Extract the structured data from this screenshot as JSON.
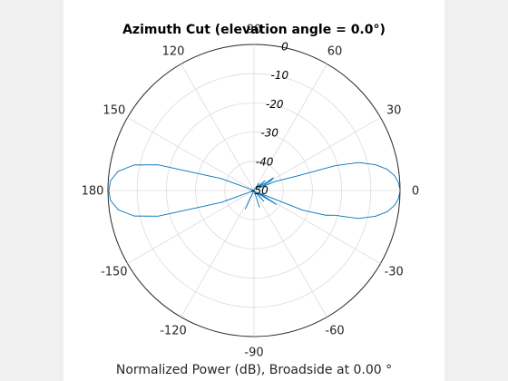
{
  "chart_data": {
    "type": "polar-line",
    "title": "Azimuth Cut (elevation angle = 0.0°)",
    "xlabel": "Normalized Power (dB), Broadside at 0.00 °",
    "angle_ticks_deg": [
      0,
      30,
      60,
      90,
      120,
      150,
      180,
      -150,
      -120,
      -90,
      -60,
      -30
    ],
    "angle_tick_labels": [
      "0",
      "30",
      "60",
      "90",
      "120",
      "150",
      "180",
      "-150",
      "-120",
      "-90",
      "-60",
      "-30"
    ],
    "radial_range_db": [
      -50,
      0
    ],
    "radial_ticks_db": [
      0,
      -10,
      -20,
      -30,
      -40,
      -50
    ],
    "radial_tick_labels": [
      "0",
      "-10",
      "-20",
      "-30",
      "-40",
      "-50"
    ],
    "radial_label_angle_deg": 80,
    "grid": true,
    "series": [
      {
        "color": "#0072bd",
        "points": [
          {
            "az": 0,
            "db": 0
          },
          {
            "az": 3,
            "db": -0.4
          },
          {
            "az": 6,
            "db": -1.6
          },
          {
            "az": 9,
            "db": -3.8
          },
          {
            "az": 12,
            "db": -7.5
          },
          {
            "az": 15,
            "db": -13
          },
          {
            "az": 17,
            "db": -21
          },
          {
            "az": 18.5,
            "db": -34
          },
          {
            "az": 20,
            "db": -38
          },
          {
            "az": 23,
            "db": -42
          },
          {
            "az": 26,
            "db": -48
          },
          {
            "az": 29,
            "db": -44
          },
          {
            "az": 33,
            "db": -42
          },
          {
            "az": 37,
            "db": -48
          },
          {
            "az": 42,
            "db": -45
          },
          {
            "az": 47,
            "db": -49
          },
          {
            "az": 55,
            "db": -47
          },
          {
            "az": 70,
            "db": -49.5
          },
          {
            "az": 90,
            "db": -50
          },
          {
            "az": 120,
            "db": -50
          },
          {
            "az": 145,
            "db": -50
          },
          {
            "az": 160,
            "db": -38
          },
          {
            "az": 165,
            "db": -16
          },
          {
            "az": 168,
            "db": -8
          },
          {
            "az": 172,
            "db": -3
          },
          {
            "az": 176,
            "db": -0.8
          },
          {
            "az": 180,
            "db": -0.3
          },
          {
            "az": -176,
            "db": -0.8
          },
          {
            "az": -172,
            "db": -3
          },
          {
            "az": -168,
            "db": -8
          },
          {
            "az": -165,
            "db": -16
          },
          {
            "az": -160,
            "db": -38
          },
          {
            "az": -150,
            "db": -50
          },
          {
            "az": -115,
            "db": -43
          },
          {
            "az": -105,
            "db": -50
          },
          {
            "az": -90,
            "db": -50
          },
          {
            "az": -72,
            "db": -44
          },
          {
            "az": -60,
            "db": -50
          },
          {
            "az": -48,
            "db": -45
          },
          {
            "az": -40,
            "db": -49
          },
          {
            "az": -32,
            "db": -41
          },
          {
            "az": -26,
            "db": -48
          },
          {
            "az": -22,
            "db": -32
          },
          {
            "az": -19,
            "db": -24
          },
          {
            "az": -17,
            "db": -21
          },
          {
            "az": -15,
            "db": -13
          },
          {
            "az": -12,
            "db": -7.5
          },
          {
            "az": -9,
            "db": -3.8
          },
          {
            "az": -6,
            "db": -1.6
          },
          {
            "az": -3,
            "db": -0.4
          },
          {
            "az": 0,
            "db": 0
          }
        ]
      }
    ]
  }
}
